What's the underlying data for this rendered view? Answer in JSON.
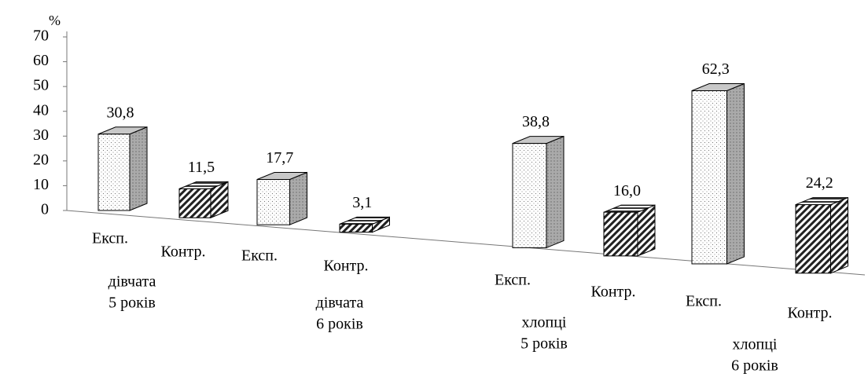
{
  "chart_data": {
    "type": "bar3d",
    "ylabel": "%",
    "ylim": [
      0,
      70
    ],
    "yticks": [
      0,
      10,
      20,
      30,
      40,
      50,
      60,
      70
    ],
    "categories": [
      [
        "дівчата",
        "5 років"
      ],
      [
        "дівчата",
        "6 років"
      ],
      [
        "хлопці",
        "5 років"
      ],
      [
        "хлопці",
        "6 років"
      ]
    ],
    "series": [
      {
        "name": "Експ.",
        "pattern": "dots",
        "color": "#ffffff",
        "values": [
          30.8,
          17.7,
          38.8,
          62.3
        ],
        "value_labels": [
          "30,8",
          "17,7",
          "38,8",
          "62,3"
        ]
      },
      {
        "name": "Контр.",
        "pattern": "hatch",
        "color": "#555555",
        "values": [
          11.5,
          3.1,
          16.0,
          24.2
        ],
        "value_labels": [
          "11,5",
          "3,1",
          "16,0",
          "24,2"
        ]
      }
    ]
  }
}
